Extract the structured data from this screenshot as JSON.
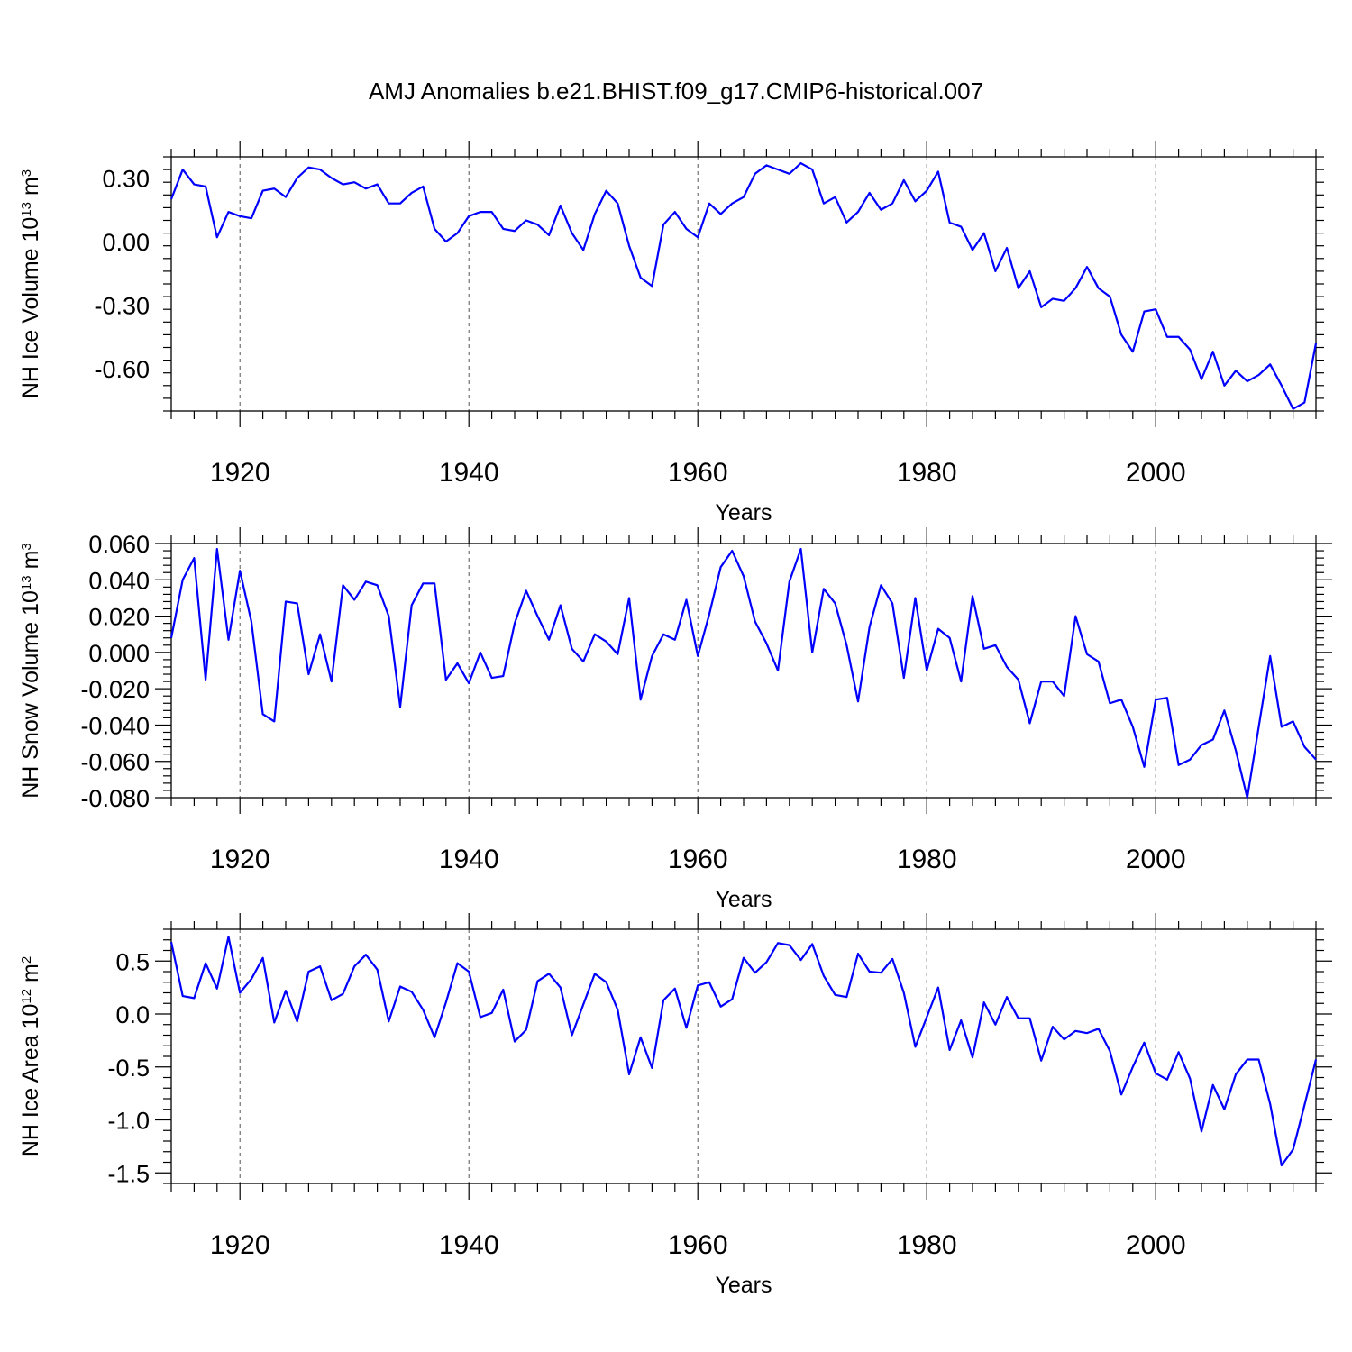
{
  "figure": {
    "title": "AMJ Anomalies b.e21.BHIST.f09_g17.CMIP6-historical.007"
  },
  "chart_data": [
    {
      "type": "line",
      "id": "ice-volume",
      "ylabel": {
        "prefix": "NH Ice Volume 10",
        "exp": "13",
        "unit": " m",
        "unit_exp": "3"
      },
      "xlabel": "Years",
      "xlim": [
        1914,
        2014
      ],
      "ylim": [
        -0.8,
        0.4
      ],
      "yticks": [
        0.3,
        0.0,
        -0.3,
        -0.6
      ],
      "yticklabels": [
        "0.30",
        "0.00",
        "-0.30",
        "-0.60"
      ],
      "xticks": [
        1920,
        1940,
        1960,
        1980,
        2000
      ],
      "xticklabels": [
        "1920",
        "1940",
        "1960",
        "1980",
        "2000"
      ],
      "grid_x": true,
      "color": "#0000ff",
      "x_start": 1914,
      "values": [
        0.2,
        0.34,
        0.27,
        0.26,
        0.02,
        0.14,
        0.12,
        0.11,
        0.24,
        0.25,
        0.21,
        0.3,
        0.35,
        0.34,
        0.3,
        0.27,
        0.28,
        0.25,
        0.27,
        0.18,
        0.18,
        0.23,
        0.26,
        0.06,
        0.0,
        0.04,
        0.12,
        0.14,
        0.14,
        0.06,
        0.05,
        0.1,
        0.08,
        0.03,
        0.17,
        0.04,
        -0.04,
        0.13,
        0.24,
        0.18,
        -0.02,
        -0.17,
        -0.21,
        0.08,
        0.14,
        0.06,
        0.02,
        0.18,
        0.13,
        0.18,
        0.21,
        0.32,
        0.36,
        0.34,
        0.32,
        0.37,
        0.34,
        0.18,
        0.21,
        0.09,
        0.14,
        0.23,
        0.15,
        0.18,
        0.29,
        0.19,
        0.24,
        0.33,
        0.09,
        0.07,
        -0.04,
        0.04,
        -0.14,
        -0.03,
        -0.22,
        -0.14,
        -0.31,
        -0.27,
        -0.28,
        -0.22,
        -0.12,
        -0.22,
        -0.26,
        -0.44,
        -0.52,
        -0.33,
        -0.32,
        -0.45,
        -0.45,
        -0.51,
        -0.65,
        -0.52,
        -0.68,
        -0.61,
        -0.66,
        -0.63,
        -0.58,
        -0.68,
        -0.79,
        -0.76,
        -0.48
      ]
    },
    {
      "type": "line",
      "id": "snow-volume",
      "ylabel": {
        "prefix": "NH Snow Volume 10",
        "exp": "13",
        "unit": " m",
        "unit_exp": "3"
      },
      "xlabel": "Years",
      "xlim": [
        1914,
        2014
      ],
      "ylim": [
        -0.08,
        0.06
      ],
      "yticks": [
        0.06,
        0.04,
        0.02,
        0.0,
        -0.02,
        -0.04,
        -0.06,
        -0.08
      ],
      "yticklabels": [
        "0.060",
        "0.040",
        "0.020",
        "0.000",
        "-0.020",
        "-0.040",
        "-0.060",
        "-0.080"
      ],
      "xticks": [
        1920,
        1940,
        1960,
        1980,
        2000
      ],
      "xticklabels": [
        "1920",
        "1940",
        "1960",
        "1980",
        "2000"
      ],
      "grid_x": true,
      "color": "#0000ff",
      "x_start": 1914,
      "values": [
        0.008,
        0.04,
        0.052,
        -0.015,
        0.057,
        0.007,
        0.045,
        0.017,
        -0.034,
        -0.038,
        0.028,
        0.027,
        -0.012,
        0.01,
        -0.016,
        0.037,
        0.029,
        0.039,
        0.037,
        0.02,
        -0.03,
        0.026,
        0.038,
        0.038,
        -0.015,
        -0.006,
        -0.017,
        0.0,
        -0.014,
        -0.013,
        0.016,
        0.034,
        0.02,
        0.007,
        0.026,
        0.002,
        -0.005,
        0.01,
        0.006,
        -0.001,
        0.03,
        -0.026,
        -0.002,
        0.01,
        0.007,
        0.029,
        -0.002,
        0.021,
        0.047,
        0.056,
        0.042,
        0.017,
        0.005,
        -0.01,
        0.039,
        0.057,
        0.0,
        0.035,
        0.027,
        0.004,
        -0.027,
        0.014,
        0.037,
        0.027,
        -0.014,
        0.03,
        -0.01,
        0.013,
        0.008,
        -0.016,
        0.031,
        0.002,
        0.004,
        -0.008,
        -0.015,
        -0.039,
        -0.016,
        -0.016,
        -0.024,
        0.02,
        -0.001,
        -0.005,
        -0.028,
        -0.026,
        -0.041,
        -0.063,
        -0.026,
        -0.025,
        -0.062,
        -0.059,
        -0.051,
        -0.048,
        -0.032,
        -0.054,
        -0.08,
        -0.041,
        -0.002,
        -0.041,
        -0.038,
        -0.052,
        -0.059
      ]
    },
    {
      "type": "line",
      "id": "ice-area",
      "ylabel": {
        "prefix": "NH Ice Area 10",
        "exp": "12",
        "unit": " m",
        "unit_exp": "2"
      },
      "xlabel": "Years",
      "xlim": [
        1914,
        2014
      ],
      "ylim": [
        -1.6,
        0.8
      ],
      "yticks": [
        0.5,
        0.0,
        -0.5,
        -1.0,
        -1.5
      ],
      "yticklabels": [
        "0.5",
        "0.0",
        "-0.5",
        "-1.0",
        "-1.5"
      ],
      "xticks": [
        1920,
        1940,
        1960,
        1980,
        2000
      ],
      "xticklabels": [
        "1920",
        "1940",
        "1960",
        "1980",
        "2000"
      ],
      "grid_x": true,
      "color": "#0000ff",
      "x_start": 1914,
      "values": [
        0.68,
        0.17,
        0.15,
        0.48,
        0.24,
        0.73,
        0.2,
        0.33,
        0.53,
        -0.08,
        0.22,
        -0.07,
        0.4,
        0.45,
        0.13,
        0.19,
        0.45,
        0.56,
        0.42,
        -0.07,
        0.26,
        0.21,
        0.04,
        -0.22,
        0.11,
        0.48,
        0.4,
        -0.03,
        0.01,
        0.23,
        -0.26,
        -0.15,
        0.31,
        0.38,
        0.25,
        -0.2,
        0.09,
        0.38,
        0.3,
        0.04,
        -0.57,
        -0.22,
        -0.51,
        0.13,
        0.24,
        -0.13,
        0.27,
        0.3,
        0.07,
        0.14,
        0.53,
        0.39,
        0.49,
        0.67,
        0.65,
        0.51,
        0.66,
        0.36,
        0.18,
        0.16,
        0.57,
        0.4,
        0.39,
        0.52,
        0.2,
        -0.31,
        -0.03,
        0.25,
        -0.34,
        -0.06,
        -0.41,
        0.11,
        -0.1,
        0.16,
        -0.04,
        -0.04,
        -0.44,
        -0.12,
        -0.24,
        -0.16,
        -0.18,
        -0.14,
        -0.35,
        -0.76,
        -0.5,
        -0.27,
        -0.56,
        -0.62,
        -0.36,
        -0.61,
        -1.11,
        -0.67,
        -0.9,
        -0.57,
        -0.43,
        -0.43,
        -0.85,
        -1.43,
        -1.28,
        -0.86,
        -0.43
      ]
    }
  ]
}
